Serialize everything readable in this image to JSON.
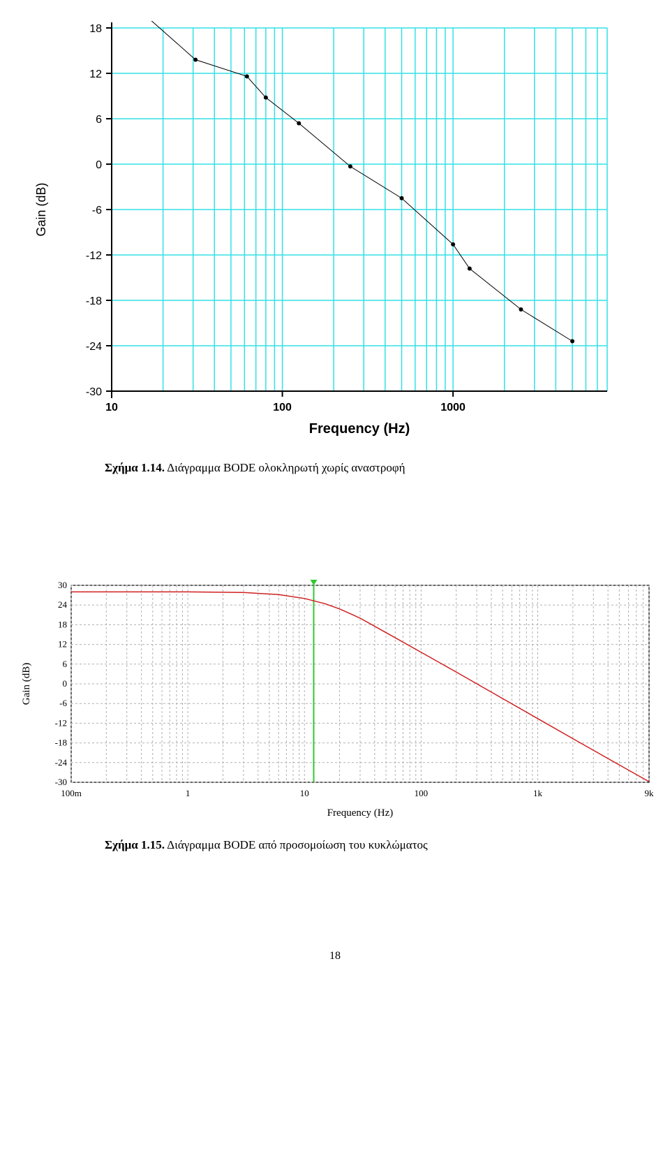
{
  "chart1": {
    "type": "scatter-line-log",
    "ylabel": "Gain (dB)",
    "xlabel": "Frequency (Hz)",
    "ylim": [
      -30,
      18
    ],
    "ytick_step": 6,
    "yticks": [
      18,
      12,
      6,
      0,
      -6,
      -12,
      -18,
      -24,
      -30
    ],
    "x_ticks_major": [
      10,
      100,
      1000
    ],
    "x_range_log": [
      10,
      8000
    ],
    "grid_color": "#33e0e6",
    "axis_color": "#000000",
    "line_color": "#000000",
    "marker_color": "#000000",
    "marker_size": 3,
    "line_width": 1,
    "background_color": "#ffffff",
    "label_fontsize": 18,
    "tick_fontsize": 16,
    "points": [
      {
        "x": 15.5,
        "y": 19.8
      },
      {
        "x": 31,
        "y": 13.8
      },
      {
        "x": 62,
        "y": 11.6
      },
      {
        "x": 80,
        "y": 8.8
      },
      {
        "x": 125,
        "y": 5.4
      },
      {
        "x": 250,
        "y": -0.3
      },
      {
        "x": 500,
        "y": -4.5
      },
      {
        "x": 1000,
        "y": -10.6
      },
      {
        "x": 1250,
        "y": -13.8
      },
      {
        "x": 2500,
        "y": -19.2
      },
      {
        "x": 5000,
        "y": -23.4
      }
    ]
  },
  "caption1_bold": "Σχήμα 1.14.",
  "caption1_rest": " Διάγραμμα BODE ολοκληρωτή χωρίς αναστροφή",
  "chart2": {
    "type": "line-log",
    "ylabel": "Gain (dB)",
    "xlabel": "Frequency (Hz)",
    "ylim": [
      -30,
      30
    ],
    "ytick_step": 6,
    "yticks": [
      30,
      24,
      18,
      12,
      6,
      0,
      -6,
      -12,
      -18,
      -24,
      -30
    ],
    "x_ticks_major_labels": [
      "100m",
      "1",
      "10",
      "100",
      "1k",
      "9k"
    ],
    "x_ticks_major_values": [
      0.1,
      1,
      10,
      100,
      1000,
      9000
    ],
    "x_range_log": [
      0.1,
      9000
    ],
    "grid_color": "#b0b0b0",
    "grid_dash": "3,3",
    "axis_color": "#000000",
    "line_color": "#d02020",
    "line_width": 1.5,
    "marker_line_color": "#30c830",
    "marker_line_x": 12,
    "background_color": "#ffffff",
    "label_fontsize": 15,
    "tick_fontsize": 13,
    "curve_points": [
      {
        "x": 0.1,
        "y": 28.0
      },
      {
        "x": 1,
        "y": 28.0
      },
      {
        "x": 3,
        "y": 27.8
      },
      {
        "x": 6,
        "y": 27.2
      },
      {
        "x": 10,
        "y": 26.0
      },
      {
        "x": 15,
        "y": 24.4
      },
      {
        "x": 20,
        "y": 22.8
      },
      {
        "x": 30,
        "y": 20.0
      },
      {
        "x": 50,
        "y": 15.6
      },
      {
        "x": 100,
        "y": 9.6
      },
      {
        "x": 200,
        "y": 3.6
      },
      {
        "x": 500,
        "y": -4.5
      },
      {
        "x": 1000,
        "y": -10.6
      },
      {
        "x": 2000,
        "y": -16.7
      },
      {
        "x": 5000,
        "y": -24.7
      },
      {
        "x": 9000,
        "y": -29.8
      }
    ]
  },
  "caption2_bold": "Σχήμα 1.15.",
  "caption2_rest": " Διάγραμμα BODE από προσομοίωση του κυκλώματος",
  "page_number": "18"
}
